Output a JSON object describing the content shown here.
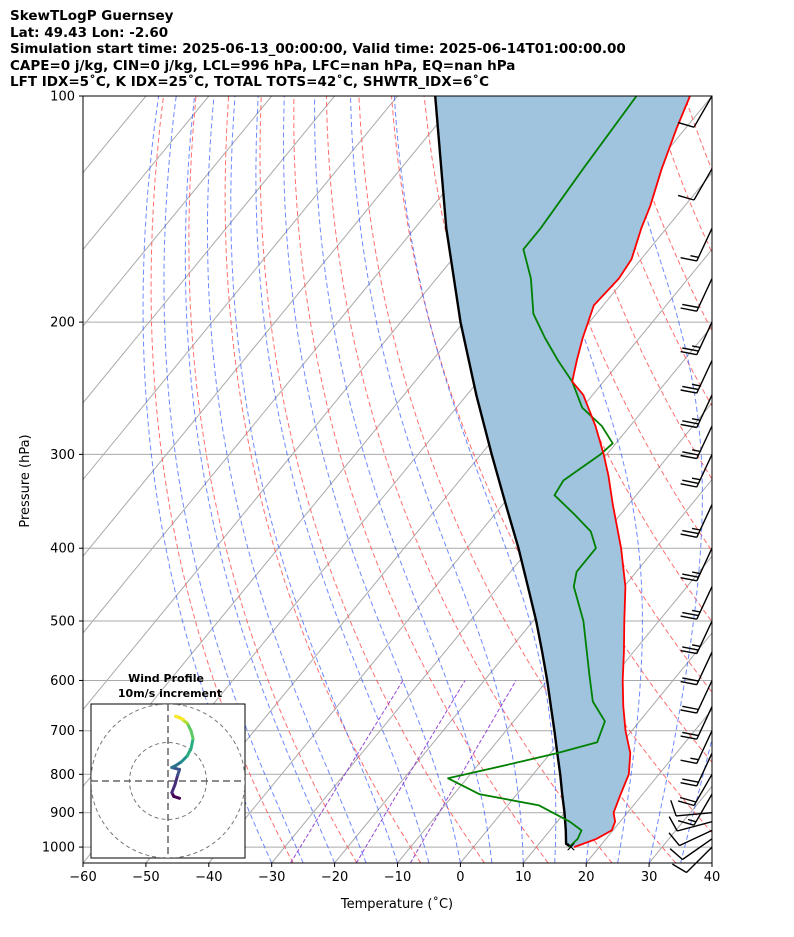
{
  "header": {
    "line1": "SkewTLogP Guernsey",
    "line2": "Lat: 49.43    Lon: -2.60",
    "line3": "Simulation start time: 2025-06-13_00:00:00, Valid time: 2025-06-14T01:00:00.00",
    "line4": "CAPE=0 j/kg, CIN=0 j/kg, LCL=996 hPa, LFC=nan hPa, EQ=nan hPa",
    "line5": "LFT IDX=5˚C, K IDX=25˚C, TOTAL TOTS=42˚C, SHWTR_IDX=6˚C"
  },
  "colors": {
    "temperature": "#ff0000",
    "dewpoint": "#008000",
    "parcel": "#000000",
    "fill": "#a0c4de",
    "dry_adiabat": "#ff5555",
    "moist_adiabat": "#3355ff",
    "mixing_ratio": "#8833cc",
    "isotherm": "#aaaaaa"
  },
  "chart_data": {
    "type": "skewt-logp",
    "xlabel": "Temperature (˚C)",
    "ylabel": "Pressure (hPa)",
    "xlim": [
      -60,
      40
    ],
    "ylim": [
      1050,
      100
    ],
    "xticks": [
      "−60",
      "−50",
      "−40",
      "−30",
      "−20",
      "−10",
      "0",
      "10",
      "20",
      "30",
      "40"
    ],
    "yticks": [
      "100",
      "200",
      "300",
      "400",
      "500",
      "600",
      "700",
      "800",
      "900",
      "1000"
    ],
    "temperature_profile": [
      {
        "p": 1000,
        "t": 16
      },
      {
        "p": 975,
        "t": 18.5
      },
      {
        "p": 950,
        "t": 19.8
      },
      {
        "p": 925,
        "t": 19.2
      },
      {
        "p": 900,
        "t": 17.8
      },
      {
        "p": 850,
        "t": 16.5
      },
      {
        "p": 800,
        "t": 15.2
      },
      {
        "p": 750,
        "t": 12.7
      },
      {
        "p": 700,
        "t": 9.0
      },
      {
        "p": 650,
        "t": 5.5
      },
      {
        "p": 600,
        "t": 2.0
      },
      {
        "p": 550,
        "t": -1.5
      },
      {
        "p": 500,
        "t": -5.5
      },
      {
        "p": 450,
        "t": -9.8
      },
      {
        "p": 400,
        "t": -15.5
      },
      {
        "p": 350,
        "t": -22.5
      },
      {
        "p": 320,
        "t": -27.0
      },
      {
        "p": 300,
        "t": -30.5
      },
      {
        "p": 275,
        "t": -35.5
      },
      {
        "p": 250,
        "t": -41.5
      },
      {
        "p": 240,
        "t": -45.0
      },
      {
        "p": 225,
        "t": -47.0
      },
      {
        "p": 210,
        "t": -49.0
      },
      {
        "p": 190,
        "t": -51.5
      },
      {
        "p": 175,
        "t": -51.0
      },
      {
        "p": 165,
        "t": -51.5
      },
      {
        "p": 150,
        "t": -54.0
      },
      {
        "p": 140,
        "t": -55.5
      },
      {
        "p": 125,
        "t": -58.5
      },
      {
        "p": 110,
        "t": -61.5
      },
      {
        "p": 100,
        "t": -63.5
      }
    ],
    "dewpoint_profile": [
      {
        "p": 1000,
        "t": 15.2
      },
      {
        "p": 975,
        "t": 15.5
      },
      {
        "p": 950,
        "t": 15.0
      },
      {
        "p": 925,
        "t": 12.0
      },
      {
        "p": 880,
        "t": 5.0
      },
      {
        "p": 850,
        "t": -6.0
      },
      {
        "p": 810,
        "t": -13.0
      },
      {
        "p": 780,
        "t": -6.0
      },
      {
        "p": 750,
        "t": 1.0
      },
      {
        "p": 725,
        "t": 6.0
      },
      {
        "p": 680,
        "t": 4.5
      },
      {
        "p": 640,
        "t": 0.0
      },
      {
        "p": 590,
        "t": -4.0
      },
      {
        "p": 500,
        "t": -12.0
      },
      {
        "p": 450,
        "t": -18.0
      },
      {
        "p": 430,
        "t": -19.5
      },
      {
        "p": 400,
        "t": -19.5
      },
      {
        "p": 380,
        "t": -22.5
      },
      {
        "p": 360,
        "t": -27.5
      },
      {
        "p": 340,
        "t": -33.0
      },
      {
        "p": 325,
        "t": -33.5
      },
      {
        "p": 300,
        "t": -31.0
      },
      {
        "p": 290,
        "t": -30.5
      },
      {
        "p": 275,
        "t": -34.5
      },
      {
        "p": 260,
        "t": -40.0
      },
      {
        "p": 240,
        "t": -45.0
      },
      {
        "p": 225,
        "t": -50.0
      },
      {
        "p": 210,
        "t": -55.0
      },
      {
        "p": 195,
        "t": -60.0
      },
      {
        "p": 175,
        "t": -65.0
      },
      {
        "p": 160,
        "t": -70.0
      },
      {
        "p": 150,
        "t": -70.0
      },
      {
        "p": 125,
        "t": -71.0
      },
      {
        "p": 100,
        "t": -72.0
      }
    ],
    "parcel_profile": [
      {
        "p": 1000,
        "t": 15.5
      },
      {
        "p": 990,
        "t": 14.3
      },
      {
        "p": 950,
        "t": 12.5
      },
      {
        "p": 900,
        "t": 10.0
      },
      {
        "p": 850,
        "t": 7.2
      },
      {
        "p": 800,
        "t": 4.3
      },
      {
        "p": 750,
        "t": 1.1
      },
      {
        "p": 700,
        "t": -2.3
      },
      {
        "p": 650,
        "t": -6.0
      },
      {
        "p": 600,
        "t": -10.0
      },
      {
        "p": 550,
        "t": -14.5
      },
      {
        "p": 500,
        "t": -19.5
      },
      {
        "p": 450,
        "t": -25.3
      },
      {
        "p": 400,
        "t": -31.8
      },
      {
        "p": 350,
        "t": -39.5
      },
      {
        "p": 300,
        "t": -48.3
      },
      {
        "p": 250,
        "t": -58.5
      },
      {
        "p": 200,
        "t": -70.5
      },
      {
        "p": 150,
        "t": -85.0
      },
      {
        "p": 100,
        "t": -104.0
      }
    ],
    "wind_barbs": [
      {
        "p": 1000,
        "speed_kt": 10,
        "direction_deg": 225
      },
      {
        "p": 975,
        "speed_kt": 10,
        "direction_deg": 235
      },
      {
        "p": 950,
        "speed_kt": 10,
        "direction_deg": 245
      },
      {
        "p": 925,
        "speed_kt": 10,
        "direction_deg": 255
      },
      {
        "p": 900,
        "speed_kt": 10,
        "direction_deg": 265
      },
      {
        "p": 850,
        "speed_kt": 15,
        "direction_deg": 210
      },
      {
        "p": 800,
        "speed_kt": 20,
        "direction_deg": 210
      },
      {
        "p": 750,
        "speed_kt": 20,
        "direction_deg": 205
      },
      {
        "p": 700,
        "speed_kt": 15,
        "direction_deg": 205
      },
      {
        "p": 650,
        "speed_kt": 20,
        "direction_deg": 205
      },
      {
        "p": 600,
        "speed_kt": 20,
        "direction_deg": 205
      },
      {
        "p": 550,
        "speed_kt": 20,
        "direction_deg": 205
      },
      {
        "p": 500,
        "speed_kt": 25,
        "direction_deg": 205
      },
      {
        "p": 450,
        "speed_kt": 25,
        "direction_deg": 205
      },
      {
        "p": 400,
        "speed_kt": 25,
        "direction_deg": 205
      },
      {
        "p": 350,
        "speed_kt": 25,
        "direction_deg": 205
      },
      {
        "p": 300,
        "speed_kt": 25,
        "direction_deg": 205
      },
      {
        "p": 275,
        "speed_kt": 25,
        "direction_deg": 205
      },
      {
        "p": 250,
        "speed_kt": 25,
        "direction_deg": 205
      },
      {
        "p": 225,
        "speed_kt": 25,
        "direction_deg": 205
      },
      {
        "p": 200,
        "speed_kt": 25,
        "direction_deg": 205
      },
      {
        "p": 175,
        "speed_kt": 20,
        "direction_deg": 205
      },
      {
        "p": 150,
        "speed_kt": 15,
        "direction_deg": 205
      },
      {
        "p": 125,
        "speed_kt": 10,
        "direction_deg": 210
      },
      {
        "p": 100,
        "speed_kt": 10,
        "direction_deg": 210
      }
    ],
    "hodograph": {
      "title": "Wind Profile",
      "subtitle": "10m/s increment",
      "range": [
        -20,
        20
      ],
      "ring_step": 10,
      "points": [
        {
          "u": 3.0,
          "v": -4.5
        },
        {
          "u": 1.5,
          "v": -4.0
        },
        {
          "u": 1.0,
          "v": -3.0
        },
        {
          "u": 1.8,
          "v": -1.0
        },
        {
          "u": 2.5,
          "v": 1.5
        },
        {
          "u": 3.0,
          "v": 3.0
        },
        {
          "u": 1.0,
          "v": 3.5
        },
        {
          "u": 2.0,
          "v": 4.0
        },
        {
          "u": 3.5,
          "v": 5.0
        },
        {
          "u": 5.0,
          "v": 6.5
        },
        {
          "u": 6.0,
          "v": 8.5
        },
        {
          "u": 6.5,
          "v": 11.0
        },
        {
          "u": 6.0,
          "v": 13.0
        },
        {
          "u": 5.0,
          "v": 15.0
        },
        {
          "u": 3.0,
          "v": 16.5
        },
        {
          "u": 2.0,
          "v": 16.8
        },
        {
          "u": 4.0,
          "v": 16.0
        }
      ]
    }
  }
}
